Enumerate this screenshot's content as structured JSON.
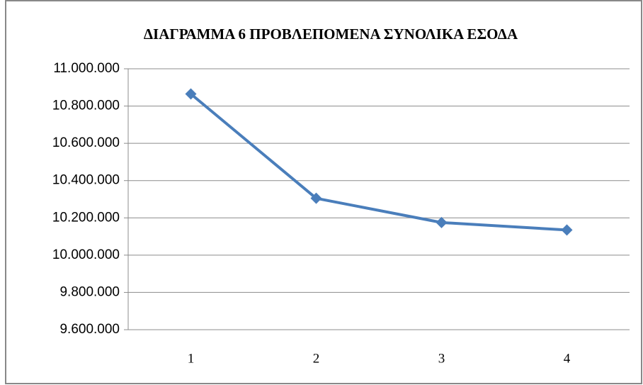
{
  "chart_data": {
    "type": "line",
    "title": "ΔΙΑΓΡΑΜΜΑ 6 ΠΡΟΒΛΕΠΟΜΕΝΑ ΣΥΝΟΛΙΚΑ ΕΣΟΔΑ",
    "categories": [
      1,
      2,
      3,
      4
    ],
    "series": [
      {
        "name": "ΣΥΝΟΛΙΚΑ ΕΣΟΔΑ",
        "color": "#4a7ebb",
        "values": [
          10865000,
          10305000,
          10175000,
          10135000
        ]
      }
    ],
    "ylim": [
      9600000,
      11000000
    ],
    "yticks": [
      {
        "value": 9600000,
        "label": "9.600.000"
      },
      {
        "value": 9800000,
        "label": "9.800.000"
      },
      {
        "value": 10000000,
        "label": "10.000.000"
      },
      {
        "value": 10200000,
        "label": "10.200.000"
      },
      {
        "value": 10400000,
        "label": "10.400.000"
      },
      {
        "value": 10600000,
        "label": "10.600.000"
      },
      {
        "value": 10800000,
        "label": "10.800.000"
      },
      {
        "value": 11000000,
        "label": "11.000.000"
      }
    ],
    "grid": true,
    "legend": false
  }
}
